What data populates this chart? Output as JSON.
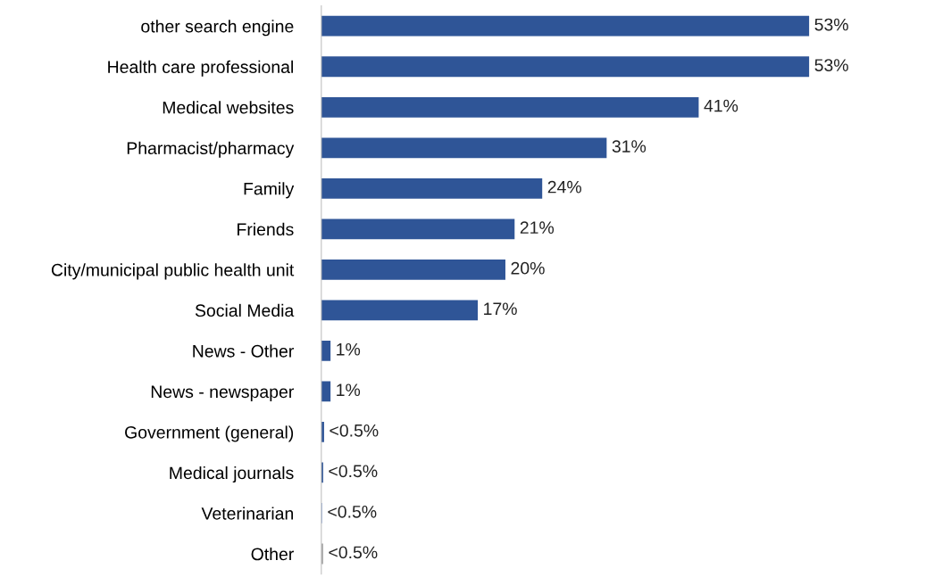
{
  "chart_data": {
    "type": "bar",
    "orientation": "horizontal",
    "categories": [
      "other search engine",
      "Health care professional",
      "Medical websites",
      "Pharmacist/pharmacy",
      "Family",
      "Friends",
      "City/municipal public health unit",
      "Social Media",
      "News - Other",
      "News - newspaper",
      "Government (general)",
      "Medical journals",
      "Veterinarian",
      "Other"
    ],
    "values": [
      53,
      53,
      41,
      31,
      24,
      21,
      20,
      17,
      1,
      1,
      0.3,
      0.2,
      0.1,
      0.2
    ],
    "colors": [
      "#2f5597",
      "#2f5597",
      "#2f5597",
      "#2f5597",
      "#2f5597",
      "#2f5597",
      "#2f5597",
      "#2f5597",
      "#2f5597",
      "#2f5597",
      "#2f5597",
      "#2f5597",
      "#8fa9dc",
      "#a5a5a5"
    ],
    "value_labels": [
      "53%",
      "53%",
      "41%",
      "31%",
      "24%",
      "21%",
      "20%",
      "17%",
      "1%",
      "1%",
      "<0.5%",
      "<0.5%",
      "<0.5%",
      "<0.5%"
    ],
    "grid": false,
    "legend": false
  }
}
